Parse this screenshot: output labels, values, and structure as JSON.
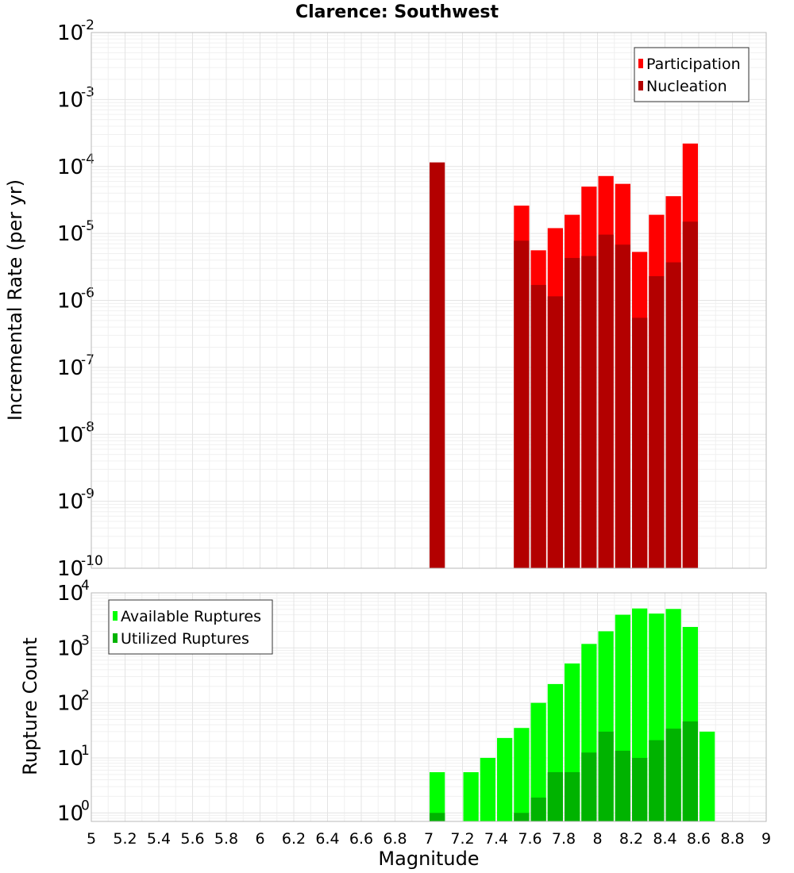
{
  "chart_data": [
    {
      "type": "bar",
      "title": "Clarence: Southwest",
      "xlabel": "",
      "ylabel": "Incremental Rate (per yr)",
      "yscale": "log",
      "ylim": [
        1e-10,
        0.01
      ],
      "xlim": [
        5,
        9
      ],
      "bar_width": 0.1,
      "grid": true,
      "legend_position": "top-right",
      "series": [
        {
          "name": "Participation",
          "color": "#ff0000",
          "x": [
            7.5,
            7.6,
            7.7,
            7.8,
            7.9,
            8.0,
            8.1,
            8.2,
            8.3,
            8.4,
            8.5
          ],
          "values": [
            2.6e-05,
            5.6e-06,
            1.2e-05,
            1.9e-05,
            5e-05,
            7.2e-05,
            5.5e-05,
            5.3e-06,
            1.9e-05,
            3.6e-05,
            0.00022
          ]
        },
        {
          "name": "Nucleation",
          "color": "#b30000",
          "x": [
            7.0,
            7.5,
            7.6,
            7.7,
            7.8,
            7.9,
            8.0,
            8.1,
            8.2,
            8.3,
            8.4,
            8.5
          ],
          "values": [
            0.000115,
            7.8e-06,
            1.7e-06,
            1.15e-06,
            4.3e-06,
            4.6e-06,
            9.6e-06,
            6.8e-06,
            5.5e-07,
            2.3e-06,
            3.7e-06,
            1.5e-05
          ]
        }
      ]
    },
    {
      "type": "bar",
      "title": "",
      "xlabel": "Magnitude",
      "ylabel": "Rupture Count",
      "yscale": "log",
      "ylim": [
        0.7,
        10000
      ],
      "xlim": [
        5,
        9
      ],
      "bar_width": 0.1,
      "grid": true,
      "legend_position": "top-left",
      "x_ticks": [
        "5",
        "5.2",
        "5.4",
        "5.6",
        "5.8",
        "6",
        "6.2",
        "6.4",
        "6.6",
        "6.8",
        "7",
        "7.2",
        "7.4",
        "7.6",
        "7.8",
        "8",
        "8.2",
        "8.4",
        "8.6",
        "8.8",
        "9"
      ],
      "series": [
        {
          "name": "Available Ruptures",
          "color": "#00ff00",
          "x": [
            7.0,
            7.2,
            7.3,
            7.4,
            7.5,
            7.6,
            7.7,
            7.8,
            7.9,
            8.0,
            8.1,
            8.2,
            8.3,
            8.4,
            8.5,
            8.6
          ],
          "values": [
            5.5,
            5.5,
            10,
            23,
            35,
            100,
            220,
            520,
            1180,
            2000,
            4000,
            5200,
            4200,
            5100,
            2400,
            30
          ]
        },
        {
          "name": "Utilized Ruptures",
          "color": "#00b300",
          "x": [
            7.0,
            7.5,
            7.6,
            7.7,
            7.8,
            7.9,
            8.0,
            8.1,
            8.2,
            8.3,
            8.4,
            8.5
          ],
          "values": [
            1,
            1,
            1.9,
            5.5,
            5.5,
            12.5,
            30,
            13.5,
            10,
            21,
            34,
            46
          ]
        }
      ]
    }
  ]
}
